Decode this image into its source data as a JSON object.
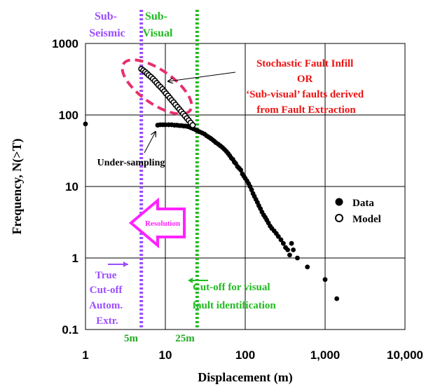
{
  "chart_data": {
    "type": "scatter",
    "xlabel": "Displacement (m)",
    "ylabel": "Frequency, N(>T)",
    "x_scale": "log",
    "y_scale": "log",
    "xlim": [
      1,
      10000
    ],
    "ylim": [
      0.1,
      1000
    ],
    "x_ticks": [
      "1",
      "10",
      "100",
      "1,000",
      "10,000"
    ],
    "y_ticks": [
      "0.1",
      "1",
      "10",
      "100",
      "1000"
    ],
    "grid": true,
    "legend": {
      "position": "right",
      "entries": [
        "Data",
        "Model"
      ]
    },
    "series": [
      {
        "name": "Data",
        "marker": "filled-circle",
        "x": [
          1.0,
          8.0,
          8.6,
          9.3,
          10.0,
          11.0,
          12.0,
          13.0,
          14.0,
          15.0,
          16.0,
          17.0,
          18.0,
          19.0,
          20.0,
          21.0,
          22.5,
          24.0,
          25.5,
          27.0,
          29.0,
          31.0,
          33.0,
          35.0,
          37.0,
          39.0,
          41.0,
          43.0,
          46.0,
          49.0,
          52.0,
          55.0,
          58.0,
          61.0,
          64.0,
          67.0,
          70.0,
          73.0,
          76.0,
          80.0,
          84.0,
          88.0,
          92.0,
          96.0,
          100.0,
          105.0,
          110.0,
          115.0,
          120.0,
          125.0,
          130.0,
          136.0,
          142.0,
          148.0,
          155.0,
          162.0,
          170.0,
          178.0,
          186.0,
          195.0,
          205.0,
          215.0,
          230.0,
          245.0,
          260.0,
          280.0,
          300.0,
          320.0,
          340.0,
          360.0,
          380.0,
          400.0,
          450.0,
          600.0,
          1000.0,
          1400.0
        ],
        "y": [
          75,
          72,
          73,
          73,
          73,
          73,
          73,
          72,
          72,
          71,
          71,
          70,
          70,
          69,
          68,
          66,
          64,
          62,
          60,
          58,
          56,
          54,
          51,
          49,
          47,
          45,
          43,
          41,
          39,
          37,
          35,
          33,
          31,
          29,
          27,
          25,
          24,
          22,
          21,
          19,
          18,
          17,
          15,
          14,
          13,
          12,
          11,
          10.0,
          9.0,
          8.0,
          7.3,
          6.6,
          6.0,
          5.4,
          4.9,
          4.4,
          4.0,
          3.7,
          3.4,
          3.1,
          2.8,
          2.6,
          2.4,
          2.2,
          2.0,
          1.8,
          1.6,
          1.4,
          1.3,
          1.1,
          1.6,
          1.3,
          1.0,
          0.75,
          0.5,
          0.27
        ]
      },
      {
        "name": "Model",
        "marker": "open-circle",
        "x": [
          5.0,
          5.3,
          5.6,
          5.9,
          6.2,
          6.6,
          7.0,
          7.4,
          7.8,
          8.2,
          8.7,
          9.2,
          9.7,
          10.2,
          10.8,
          11.4,
          12.0,
          12.7,
          13.4,
          14.2,
          15.0,
          15.8,
          16.7,
          17.6,
          18.6,
          19.6,
          20.7,
          22.0
        ],
        "y": [
          440,
          420,
          400,
          380,
          360,
          340,
          320,
          300,
          280,
          262,
          246,
          230,
          214,
          200,
          186,
          173,
          161,
          150,
          139,
          129,
          120,
          112,
          104,
          97,
          90,
          84,
          78,
          72
        ]
      }
    ],
    "reference_lines": [
      {
        "x": 5,
        "label": "5m",
        "color": "#9b4dff"
      },
      {
        "x": 25,
        "label": "25m",
        "color": "#22cc22"
      }
    ],
    "annotations": {
      "sub_seismic": [
        "Sub-",
        "Seismic"
      ],
      "sub_visual": [
        "Sub-",
        "Visual"
      ],
      "stochastic": [
        "Stochastic Fault Infill",
        "OR",
        "‘Sub-visual’ faults derived",
        "from Fault Extraction"
      ],
      "undersampling": "Under-sampling",
      "resolution": "Resolution",
      "true_cutoff": [
        "True",
        "Cut-off",
        "Autom.",
        "Extr."
      ],
      "visual_cutoff": [
        "Cut-off  for visual",
        "fault identification"
      ]
    },
    "colors": {
      "purple": "#9b4dff",
      "green": "#22bb22",
      "red": "#ee1111",
      "ellipse": "#e8306a",
      "magenta": "#ff22ff"
    }
  }
}
